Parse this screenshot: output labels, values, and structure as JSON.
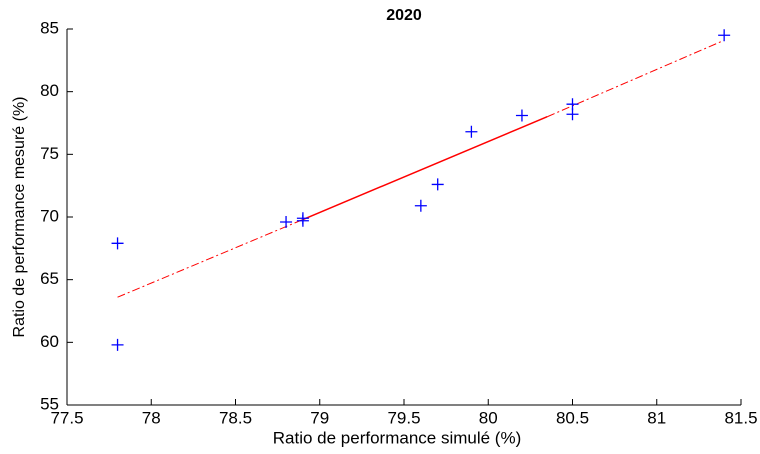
{
  "chart_data": {
    "type": "scatter",
    "title": "2020",
    "x_label": "Ratio de performance simulé (%)",
    "y_label": "Ratio de performance mesuré (%)",
    "x": [
      77.8,
      77.8,
      78.8,
      78.9,
      78.9,
      79.6,
      79.7,
      79.9,
      80.2,
      80.5,
      80.5,
      81.4
    ],
    "values": [
      67.9,
      59.8,
      69.6,
      69.9,
      69.7,
      70.9,
      72.6,
      76.8,
      78.1,
      79.0,
      78.2,
      84.5
    ],
    "color": "#0000ff",
    "marker": "+",
    "lines": [
      {
        "x": [
          77.8,
          78.9
        ],
        "values": [
          63.6,
          69.8
        ],
        "color": "#ff0000",
        "style": "dashdot"
      },
      {
        "x": [
          78.9,
          80.35
        ],
        "values": [
          69.8,
          78.0
        ],
        "color": "#ff0000",
        "style": "solid"
      },
      {
        "x": [
          80.35,
          81.4
        ],
        "values": [
          78.0,
          84.1
        ],
        "color": "#ff0000",
        "style": "dashdot"
      }
    ],
    "xlim": [
      77.5,
      81.5
    ],
    "xticks": [
      77.5,
      78,
      78.5,
      79,
      79.5,
      80,
      80.5,
      81,
      81.5
    ],
    "ylim": [
      55,
      85
    ],
    "yticks": [
      55,
      60,
      65,
      70,
      75,
      80,
      85
    ]
  }
}
